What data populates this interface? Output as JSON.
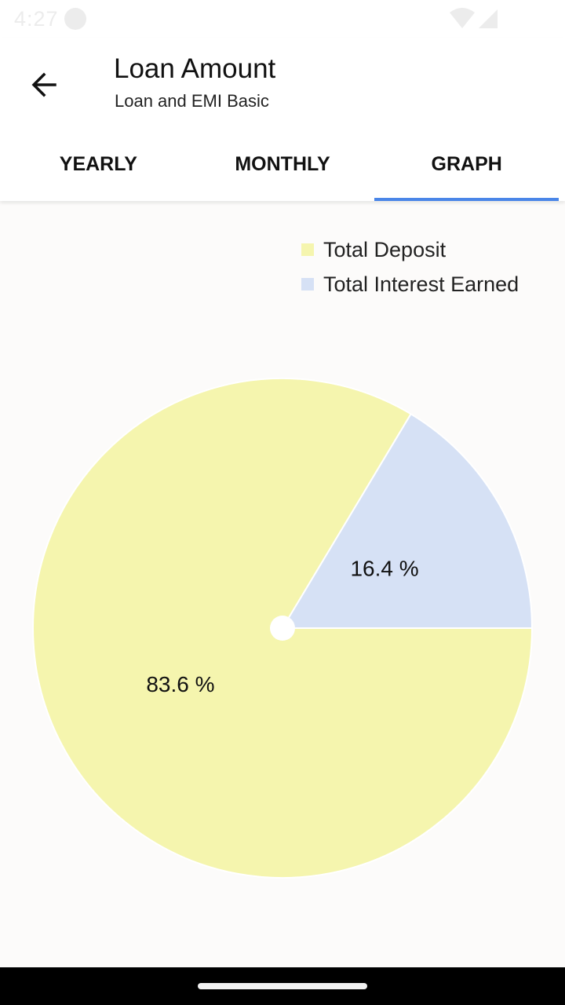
{
  "status_bar": {
    "time": "4:27"
  },
  "header": {
    "title": "Loan Amount",
    "subtitle": "Loan and EMI Basic"
  },
  "tabs": [
    {
      "label": "YEARLY",
      "active": false
    },
    {
      "label": "MONTHLY",
      "active": false
    },
    {
      "label": "GRAPH",
      "active": true
    }
  ],
  "colors": {
    "deposit": "#f5f5ae",
    "interest": "#d6e1f5",
    "tab_indicator": "#4a86e8"
  },
  "chart_data": {
    "type": "pie",
    "legend_position": "top-right",
    "series": [
      {
        "name": "Total Deposit",
        "value": 83.6,
        "label": "83.6 %",
        "color": "#f5f5ae"
      },
      {
        "name": "Total Interest Earned",
        "value": 16.4,
        "label": "16.4 %",
        "color": "#d6e1f5"
      }
    ]
  }
}
